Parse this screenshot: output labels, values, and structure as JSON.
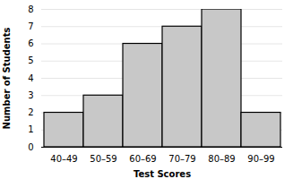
{
  "chart_data": {
    "type": "bar",
    "categories": [
      "40–49",
      "50–59",
      "60–69",
      "70–79",
      "80–89",
      "90–99"
    ],
    "values": [
      2,
      3,
      6,
      7,
      8,
      2
    ],
    "color": "#c8c8c8",
    "xlabel": "Test Scores",
    "ylabel": "Number of Students",
    "ylim": [
      0,
      8
    ],
    "yticks": [
      0,
      1,
      2,
      3,
      4,
      5,
      6,
      7,
      8
    ],
    "grid": true
  }
}
